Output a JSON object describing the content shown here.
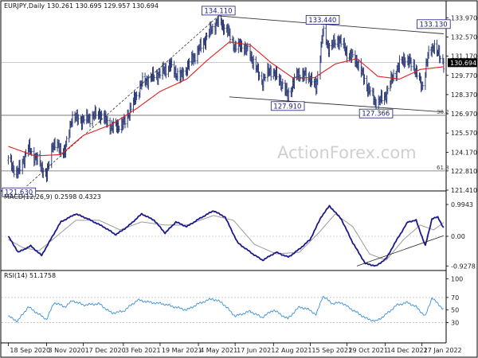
{
  "colors": {
    "background": "#ffffff",
    "bars": "#1b2a6b",
    "moving_average": "#e02020",
    "trend_line": "#333333",
    "fib_line": "#666666",
    "macd_line": "#1a1a8c",
    "macd_signal": "#9a9a9a",
    "rsi_line": "#3a8fd8",
    "grid": "#aaaaaa",
    "price_tag_bg": "#000000",
    "price_tag_text": "#ffffff"
  },
  "chart_data": [
    {
      "type": "line",
      "title": "EURJPY,Daily",
      "ohlc_header": "130.261 130.695 129.957 130.694",
      "y_ticks": [
        "133.970",
        "132.570",
        "131.170",
        "129.770",
        "128.370",
        "126.970",
        "125.570",
        "124.170",
        "122.810",
        "121.410"
      ],
      "y_tick_values": [
        133.97,
        132.57,
        131.17,
        129.77,
        128.37,
        126.97,
        125.57,
        124.17,
        122.81,
        121.41
      ],
      "ylim": [
        121.41,
        134.45
      ],
      "current_price_label": "130.694",
      "current_price": 130.694,
      "x_ticks": [
        "18 Sep 2020",
        "3 Nov 2020",
        "17 Dec 2020",
        "3 Feb 2021",
        "19 Mar 2021",
        "4 May 2021",
        "17 Jun 2021",
        "2 Aug 2021",
        "15 Sep 2021",
        "29 Oct 2021",
        "14 Dec 2021",
        "27 Jan 2022"
      ],
      "x_tick_dates": [
        "2020-09-18",
        "2020-11-03",
        "2020-12-17",
        "2021-02-03",
        "2021-03-19",
        "2021-05-04",
        "2021-06-17",
        "2021-08-02",
        "2021-09-15",
        "2021-10-29",
        "2021-12-14",
        "2022-01-27"
      ],
      "annotations": [
        {
          "text": "134.110",
          "date": "2021-05-28",
          "value": 134.11
        },
        {
          "text": "133.440",
          "date": "2021-09-30",
          "value": 133.44
        },
        {
          "text": "133.130",
          "date": "2022-02-10",
          "value": 133.13
        },
        {
          "text": "127.910",
          "date": "2021-08-19",
          "value": 127.91
        },
        {
          "text": "127.366",
          "date": "2021-12-03",
          "value": 127.366
        },
        {
          "text": "121.630",
          "date": "2020-09-29",
          "value": 121.63
        }
      ],
      "fib_levels": [
        {
          "label": "38.2",
          "value": 126.86
        },
        {
          "label": "61.8",
          "value": 122.81
        }
      ],
      "extra_levels": [
        130.7
      ],
      "channel_upper": [
        {
          "date": "2021-05-28",
          "value": 134.11
        },
        {
          "date": "2022-02-22",
          "value": 132.8
        }
      ],
      "channel_lower": [
        {
          "date": "2021-06-10",
          "value": 128.2
        },
        {
          "date": "2022-02-22",
          "value": 127.1
        }
      ],
      "trend_support": [
        {
          "date": "2020-10-10",
          "value": 121.7
        },
        {
          "date": "2021-05-28",
          "value": 134.1
        }
      ],
      "close_anchors": [
        {
          "date": "2020-09-18",
          "value": 123.6
        },
        {
          "date": "2020-09-29",
          "value": 122.6
        },
        {
          "date": "2020-10-12",
          "value": 124.5
        },
        {
          "date": "2020-10-26",
          "value": 123.3
        },
        {
          "date": "2020-11-03",
          "value": 122.4
        },
        {
          "date": "2020-11-10",
          "value": 124.8
        },
        {
          "date": "2020-11-25",
          "value": 124.2
        },
        {
          "date": "2020-12-03",
          "value": 126.7
        },
        {
          "date": "2020-12-17",
          "value": 126.5
        },
        {
          "date": "2021-01-05",
          "value": 127.0
        },
        {
          "date": "2021-01-20",
          "value": 126.0
        },
        {
          "date": "2021-02-03",
          "value": 126.2
        },
        {
          "date": "2021-02-15",
          "value": 127.8
        },
        {
          "date": "2021-02-25",
          "value": 129.2
        },
        {
          "date": "2021-03-08",
          "value": 129.6
        },
        {
          "date": "2021-03-19",
          "value": 129.9
        },
        {
          "date": "2021-03-31",
          "value": 130.5
        },
        {
          "date": "2021-04-12",
          "value": 129.6
        },
        {
          "date": "2021-04-25",
          "value": 130.8
        },
        {
          "date": "2021-05-04",
          "value": 131.6
        },
        {
          "date": "2021-05-17",
          "value": 132.9
        },
        {
          "date": "2021-05-28",
          "value": 133.8
        },
        {
          "date": "2021-06-08",
          "value": 133.0
        },
        {
          "date": "2021-06-17",
          "value": 131.8
        },
        {
          "date": "2021-06-25",
          "value": 132.0
        },
        {
          "date": "2021-07-05",
          "value": 131.3
        },
        {
          "date": "2021-07-19",
          "value": 129.3
        },
        {
          "date": "2021-07-29",
          "value": 130.2
        },
        {
          "date": "2021-08-10",
          "value": 129.4
        },
        {
          "date": "2021-08-19",
          "value": 128.3
        },
        {
          "date": "2021-08-31",
          "value": 129.9
        },
        {
          "date": "2021-09-15",
          "value": 129.6
        },
        {
          "date": "2021-09-22",
          "value": 128.8
        },
        {
          "date": "2021-09-30",
          "value": 132.9
        },
        {
          "date": "2021-10-07",
          "value": 131.8
        },
        {
          "date": "2021-10-20",
          "value": 132.4
        },
        {
          "date": "2021-10-29",
          "value": 131.4
        },
        {
          "date": "2021-11-10",
          "value": 130.8
        },
        {
          "date": "2021-11-22",
          "value": 129.0
        },
        {
          "date": "2021-12-03",
          "value": 127.7
        },
        {
          "date": "2021-12-14",
          "value": 128.3
        },
        {
          "date": "2021-12-24",
          "value": 129.8
        },
        {
          "date": "2022-01-05",
          "value": 131.0
        },
        {
          "date": "2022-01-17",
          "value": 130.5
        },
        {
          "date": "2022-01-27",
          "value": 128.9
        },
        {
          "date": "2022-02-03",
          "value": 131.1
        },
        {
          "date": "2022-02-10",
          "value": 132.0
        },
        {
          "date": "2022-02-18",
          "value": 131.0
        },
        {
          "date": "2022-02-22",
          "value": 130.69
        }
      ],
      "ma_anchors": [
        {
          "date": "2020-09-18",
          "value": 124.6
        },
        {
          "date": "2020-10-20",
          "value": 123.9
        },
        {
          "date": "2020-11-20",
          "value": 124.0
        },
        {
          "date": "2020-12-17",
          "value": 125.4
        },
        {
          "date": "2021-01-20",
          "value": 126.2
        },
        {
          "date": "2021-02-20",
          "value": 127.4
        },
        {
          "date": "2021-03-19",
          "value": 128.6
        },
        {
          "date": "2021-04-20",
          "value": 129.5
        },
        {
          "date": "2021-05-15",
          "value": 130.9
        },
        {
          "date": "2021-06-10",
          "value": 132.2
        },
        {
          "date": "2021-07-05",
          "value": 132.0
        },
        {
          "date": "2021-07-30",
          "value": 130.7
        },
        {
          "date": "2021-08-25",
          "value": 129.6
        },
        {
          "date": "2021-09-20",
          "value": 129.6
        },
        {
          "date": "2021-10-15",
          "value": 130.6
        },
        {
          "date": "2021-11-10",
          "value": 131.0
        },
        {
          "date": "2021-12-05",
          "value": 129.7
        },
        {
          "date": "2021-12-31",
          "value": 129.5
        },
        {
          "date": "2022-01-25",
          "value": 130.2
        },
        {
          "date": "2022-02-22",
          "value": 130.4
        }
      ]
    },
    {
      "type": "line",
      "title": "MACD(12,26,9) 0.2598 0.4323",
      "y_ticks": [
        "0.9943",
        "0.00",
        "-0.9278"
      ],
      "y_tick_values": [
        0.9943,
        0.0,
        -0.9278
      ],
      "ylim": [
        -1.02,
        1.12
      ],
      "support_line": [
        {
          "date": "2021-11-10",
          "value": -0.93
        },
        {
          "date": "2022-02-22",
          "value": 0.02
        }
      ],
      "series": [
        {
          "values": [
            {
              "date": "2020-09-18",
              "value": 0.0
            },
            {
              "date": "2020-09-30",
              "value": -0.5
            },
            {
              "date": "2020-10-15",
              "value": -0.3
            },
            {
              "date": "2020-10-28",
              "value": -0.6
            },
            {
              "date": "2020-11-10",
              "value": 0.0
            },
            {
              "date": "2020-11-20",
              "value": 0.45
            },
            {
              "date": "2020-12-08",
              "value": 0.7
            },
            {
              "date": "2020-12-22",
              "value": 0.55
            },
            {
              "date": "2021-01-10",
              "value": 0.3
            },
            {
              "date": "2021-01-25",
              "value": 0.05
            },
            {
              "date": "2021-02-08",
              "value": 0.3
            },
            {
              "date": "2021-02-25",
              "value": 0.7
            },
            {
              "date": "2021-03-12",
              "value": 0.5
            },
            {
              "date": "2021-03-25",
              "value": 0.1
            },
            {
              "date": "2021-04-07",
              "value": 0.45
            },
            {
              "date": "2021-04-20",
              "value": 0.3
            },
            {
              "date": "2021-05-05",
              "value": 0.55
            },
            {
              "date": "2021-05-22",
              "value": 0.8
            },
            {
              "date": "2021-06-05",
              "value": 0.6
            },
            {
              "date": "2021-06-20",
              "value": -0.2
            },
            {
              "date": "2021-07-08",
              "value": -0.55
            },
            {
              "date": "2021-07-20",
              "value": -0.75
            },
            {
              "date": "2021-08-05",
              "value": -0.5
            },
            {
              "date": "2021-08-20",
              "value": -0.65
            },
            {
              "date": "2021-09-02",
              "value": -0.4
            },
            {
              "date": "2021-09-15",
              "value": -0.1
            },
            {
              "date": "2021-09-28",
              "value": 0.6
            },
            {
              "date": "2021-10-08",
              "value": 0.95
            },
            {
              "date": "2021-10-22",
              "value": 0.55
            },
            {
              "date": "2021-11-05",
              "value": -0.2
            },
            {
              "date": "2021-11-20",
              "value": -0.85
            },
            {
              "date": "2021-12-03",
              "value": -0.93
            },
            {
              "date": "2021-12-15",
              "value": -0.7
            },
            {
              "date": "2021-12-28",
              "value": -0.1
            },
            {
              "date": "2022-01-10",
              "value": 0.45
            },
            {
              "date": "2022-01-20",
              "value": 0.5
            },
            {
              "date": "2022-01-31",
              "value": -0.3
            },
            {
              "date": "2022-02-08",
              "value": 0.55
            },
            {
              "date": "2022-02-15",
              "value": 0.6
            },
            {
              "date": "2022-02-22",
              "value": 0.26
            }
          ]
        },
        {
          "values": [
            {
              "date": "2020-09-18",
              "value": -0.1
            },
            {
              "date": "2020-10-05",
              "value": -0.35
            },
            {
              "date": "2020-10-25",
              "value": -0.45
            },
            {
              "date": "2020-11-15",
              "value": 0.0
            },
            {
              "date": "2020-12-08",
              "value": 0.5
            },
            {
              "date": "2021-01-05",
              "value": 0.5
            },
            {
              "date": "2021-01-30",
              "value": 0.2
            },
            {
              "date": "2021-02-25",
              "value": 0.45
            },
            {
              "date": "2021-03-25",
              "value": 0.35
            },
            {
              "date": "2021-04-20",
              "value": 0.35
            },
            {
              "date": "2021-05-22",
              "value": 0.65
            },
            {
              "date": "2021-06-15",
              "value": 0.5
            },
            {
              "date": "2021-07-10",
              "value": -0.25
            },
            {
              "date": "2021-08-05",
              "value": -0.55
            },
            {
              "date": "2021-09-02",
              "value": -0.5
            },
            {
              "date": "2021-09-25",
              "value": 0.1
            },
            {
              "date": "2021-10-15",
              "value": 0.7
            },
            {
              "date": "2021-11-05",
              "value": 0.3
            },
            {
              "date": "2021-11-25",
              "value": -0.55
            },
            {
              "date": "2021-12-15",
              "value": -0.75
            },
            {
              "date": "2022-01-05",
              "value": -0.1
            },
            {
              "date": "2022-01-25",
              "value": 0.35
            },
            {
              "date": "2022-02-10",
              "value": 0.2
            },
            {
              "date": "2022-02-22",
              "value": 0.43
            }
          ]
        }
      ]
    },
    {
      "type": "line",
      "title": "RSI(14) 51.1758",
      "y_ticks": [
        "100",
        "70",
        "50",
        "30",
        "0"
      ],
      "y_tick_values": [
        100,
        70,
        50,
        30,
        0
      ],
      "ylim": [
        0,
        100
      ],
      "levels": [
        70,
        30
      ],
      "series": [
        {
          "values": [
            {
              "date": "2020-09-18",
              "value": 40
            },
            {
              "date": "2020-09-29",
              "value": 32
            },
            {
              "date": "2020-10-12",
              "value": 55
            },
            {
              "date": "2020-10-26",
              "value": 42
            },
            {
              "date": "2020-11-03",
              "value": 35
            },
            {
              "date": "2020-11-12",
              "value": 62
            },
            {
              "date": "2020-11-25",
              "value": 55
            },
            {
              "date": "2020-12-04",
              "value": 65
            },
            {
              "date": "2020-12-17",
              "value": 58
            },
            {
              "date": "2021-01-05",
              "value": 60
            },
            {
              "date": "2021-01-20",
              "value": 45
            },
            {
              "date": "2021-02-03",
              "value": 48
            },
            {
              "date": "2021-02-20",
              "value": 66
            },
            {
              "date": "2021-03-08",
              "value": 62
            },
            {
              "date": "2021-03-22",
              "value": 60
            },
            {
              "date": "2021-04-05",
              "value": 55
            },
            {
              "date": "2021-04-20",
              "value": 50
            },
            {
              "date": "2021-05-04",
              "value": 60
            },
            {
              "date": "2021-05-20",
              "value": 68
            },
            {
              "date": "2021-06-01",
              "value": 62
            },
            {
              "date": "2021-06-17",
              "value": 40
            },
            {
              "date": "2021-07-05",
              "value": 48
            },
            {
              "date": "2021-07-19",
              "value": 38
            },
            {
              "date": "2021-08-02",
              "value": 50
            },
            {
              "date": "2021-08-19",
              "value": 36
            },
            {
              "date": "2021-09-02",
              "value": 55
            },
            {
              "date": "2021-09-15",
              "value": 50
            },
            {
              "date": "2021-09-22",
              "value": 42
            },
            {
              "date": "2021-09-30",
              "value": 72
            },
            {
              "date": "2021-10-12",
              "value": 60
            },
            {
              "date": "2021-10-22",
              "value": 62
            },
            {
              "date": "2021-11-05",
              "value": 50
            },
            {
              "date": "2021-11-22",
              "value": 36
            },
            {
              "date": "2021-12-03",
              "value": 32
            },
            {
              "date": "2021-12-14",
              "value": 42
            },
            {
              "date": "2021-12-28",
              "value": 58
            },
            {
              "date": "2022-01-10",
              "value": 62
            },
            {
              "date": "2022-01-20",
              "value": 55
            },
            {
              "date": "2022-01-31",
              "value": 40
            },
            {
              "date": "2022-02-08",
              "value": 70
            },
            {
              "date": "2022-02-15",
              "value": 60
            },
            {
              "date": "2022-02-22",
              "value": 51
            }
          ]
        }
      ]
    }
  ],
  "watermark": "ActionForex.com"
}
